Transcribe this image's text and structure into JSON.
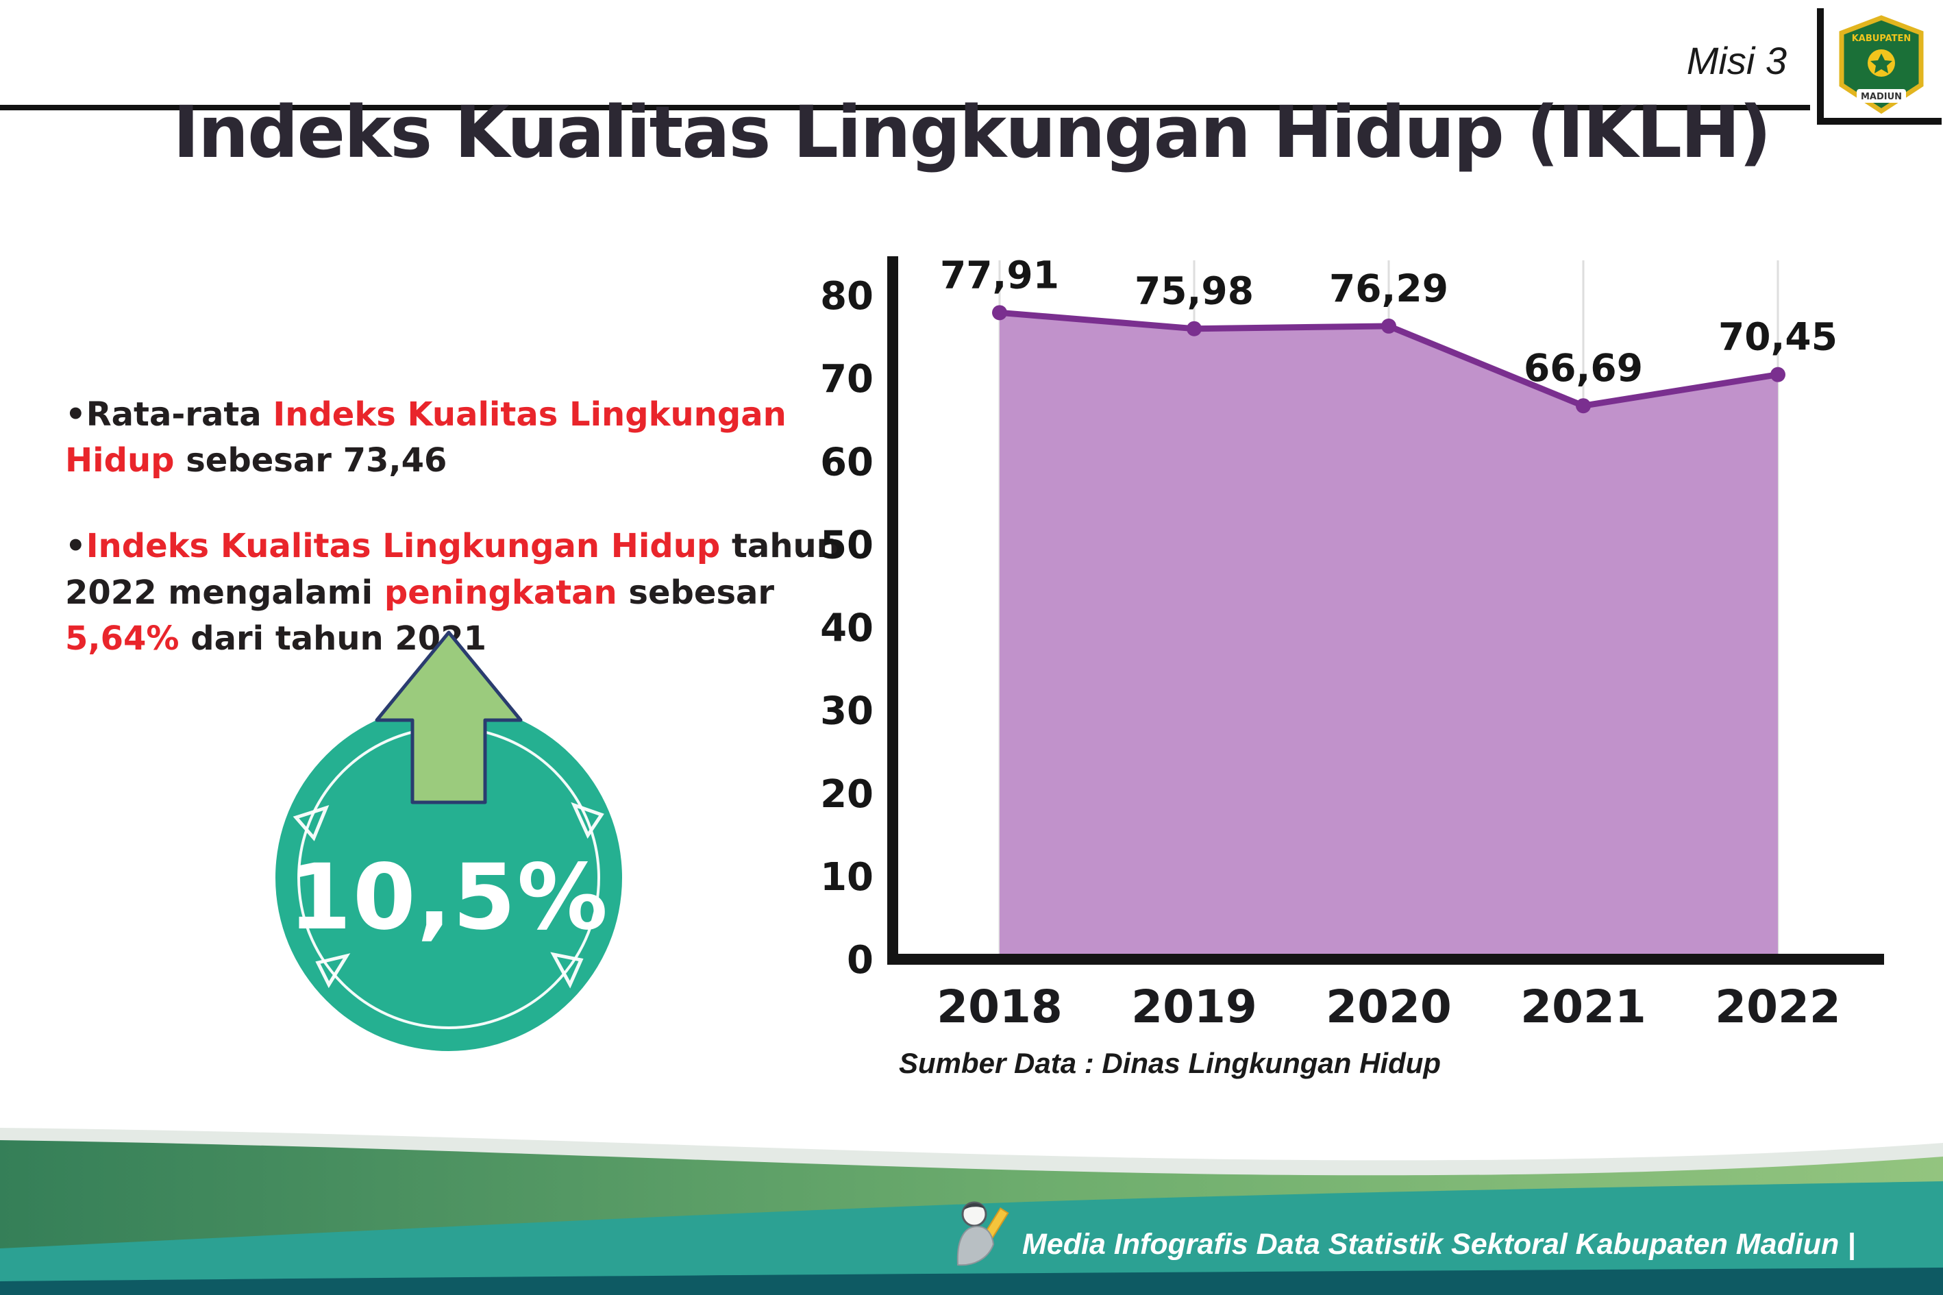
{
  "header": {
    "misi_label": "Misi 3",
    "title": "Indeks Kualitas Lingkungan Hidup (IKLH)",
    "logo": {
      "top_text": "KABUPATEN",
      "bottom_text": "MADIUN"
    }
  },
  "bullets": [
    {
      "marker": "•",
      "segments": [
        {
          "text": "Rata-rata ",
          "color": "dark"
        },
        {
          "text": "Indeks Kualitas Lingkungan Hidup",
          "color": "red"
        },
        {
          "text": " sebesar 73,46",
          "color": "dark"
        }
      ]
    },
    {
      "marker": "•",
      "segments": [
        {
          "text": "Indeks Kualitas Lingkungan Hidup",
          "color": "red"
        },
        {
          "text": " tahun 2022 mengalami ",
          "color": "dark"
        },
        {
          "text": "peningkatan",
          "color": "red"
        },
        {
          "text": " sebesar ",
          "color": "dark"
        },
        {
          "text": "5,64%",
          "color": "red"
        },
        {
          "text": " dari tahun 2021",
          "color": "dark"
        }
      ]
    }
  ],
  "badge": {
    "value": "10,5%",
    "circle_color": "#25b091",
    "arrow_color": "#9bcb7d"
  },
  "chart_data": {
    "type": "area",
    "categories": [
      "2018",
      "2019",
      "2020",
      "2021",
      "2022"
    ],
    "values": [
      77.91,
      75.98,
      76.29,
      66.69,
      70.45
    ],
    "value_labels": [
      "77,91",
      "75,98",
      "76,29",
      "66,69",
      "70,45"
    ],
    "title": "",
    "xlabel": "",
    "ylabel": "",
    "ylim": [
      0,
      80
    ],
    "yticks": [
      0,
      10,
      20,
      30,
      40,
      50,
      60,
      70,
      80
    ],
    "grid": "vertical-light",
    "legend": "none",
    "line_color": "#7a2f8f",
    "fill_color": "#c192cb",
    "source_note": "Sumber Data : Dinas Lingkungan Hidup"
  },
  "footer": {
    "credit": "Media Infografis Data Statistik Sektoral Kabupaten Madiun |"
  }
}
